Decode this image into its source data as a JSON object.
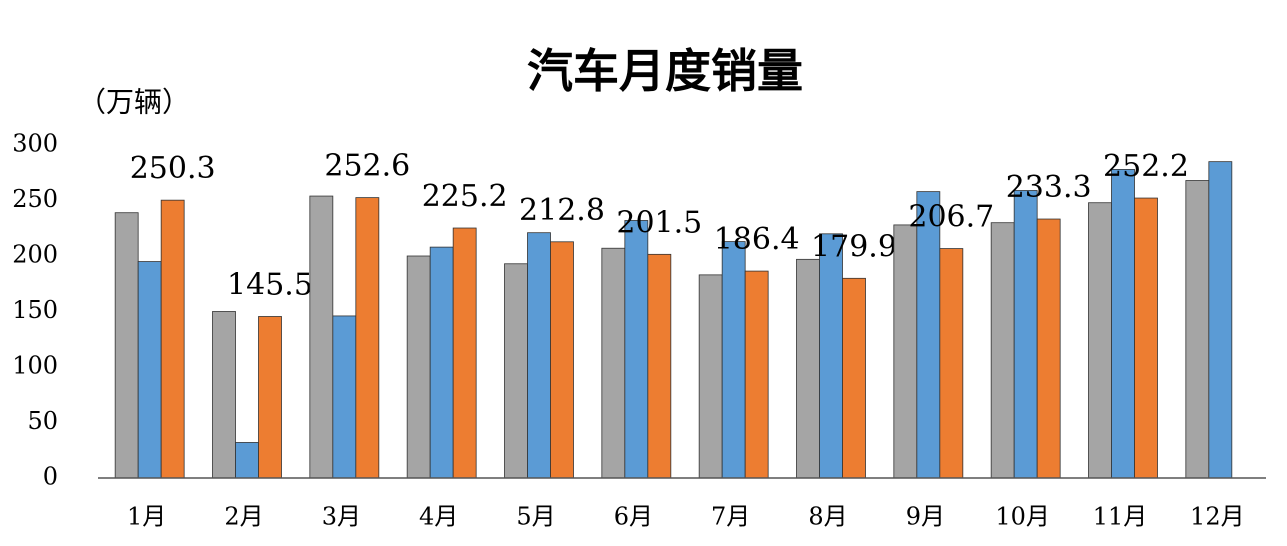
{
  "chart_data": {
    "type": "bar",
    "title": "汽车月度销量",
    "y_label": "（万辆）",
    "categories": [
      "1月",
      "2月",
      "3月",
      "4月",
      "5月",
      "6月",
      "7月",
      "8月",
      "9月",
      "10月",
      "11月",
      "12月"
    ],
    "series": [
      {
        "color": "#a5a5a5",
        "values": [
          239,
          150,
          254,
          200,
          193,
          207,
          183,
          197,
          228,
          230,
          248,
          268
        ]
      },
      {
        "color": "#5b9bd5",
        "values": [
          195,
          32,
          146,
          208,
          221,
          232,
          213,
          220,
          258,
          259,
          278,
          285
        ]
      },
      {
        "color": "#ed7d31",
        "values": [
          250.3,
          145.5,
          252.6,
          225.2,
          212.8,
          201.5,
          186.4,
          179.9,
          206.7,
          233.3,
          252.2,
          null
        ],
        "data_labels": true
      }
    ],
    "ylim": [
      0,
      300
    ],
    "yticks": [
      0,
      50,
      100,
      150,
      200,
      250,
      300
    ],
    "grid": false
  }
}
